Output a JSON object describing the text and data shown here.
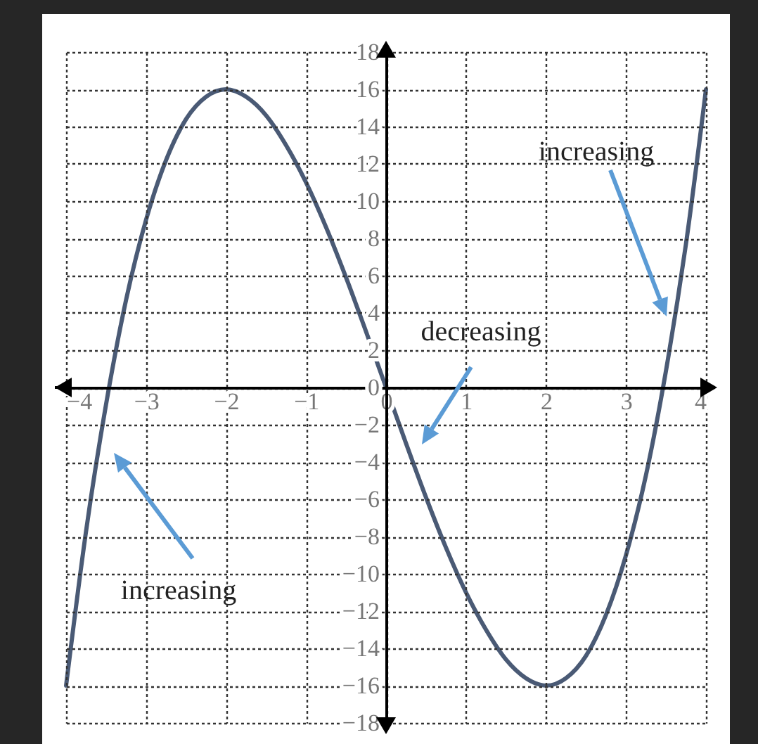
{
  "chart_data": {
    "type": "line",
    "x": [
      -4,
      -3.75,
      -3.5,
      -3.25,
      -3,
      -2.75,
      -2.5,
      -2.25,
      -2,
      -1.75,
      -1.5,
      -1.25,
      -1,
      -0.75,
      -0.5,
      -0.25,
      0,
      0.25,
      0.5,
      0.75,
      1,
      1.25,
      1.5,
      1.75,
      2,
      2.25,
      2.5,
      2.75,
      3,
      3.25,
      3.5,
      3.75,
      4
    ],
    "series": [
      {
        "color": "#4a5a75",
        "values": [
          -16,
          -7.7,
          -0.9,
          4.7,
          9,
          12.2,
          14.4,
          15.6,
          16,
          15.6,
          14.6,
          13.0,
          11,
          8.6,
          5.9,
          3.0,
          0,
          -3.0,
          -5.9,
          -8.6,
          -11,
          -13.0,
          -14.6,
          -15.6,
          -16,
          -15.6,
          -14.4,
          -12.2,
          -9,
          -4.7,
          0.9,
          7.7,
          16
        ]
      }
    ],
    "xlim": [
      -4,
      4
    ],
    "xticks": [
      -4,
      -3,
      -2,
      -1,
      0,
      1,
      2,
      3,
      4
    ],
    "ylim": [
      -18,
      18
    ],
    "yticks": [
      18,
      16,
      14,
      12,
      10,
      8,
      6,
      4,
      2,
      0,
      -2,
      -4,
      -6,
      -8,
      -10,
      -12,
      -14,
      -16,
      -18
    ],
    "grid": true,
    "line_style": "solid",
    "annotations": [
      "increasing",
      "decreasing",
      "increasing"
    ]
  }
}
